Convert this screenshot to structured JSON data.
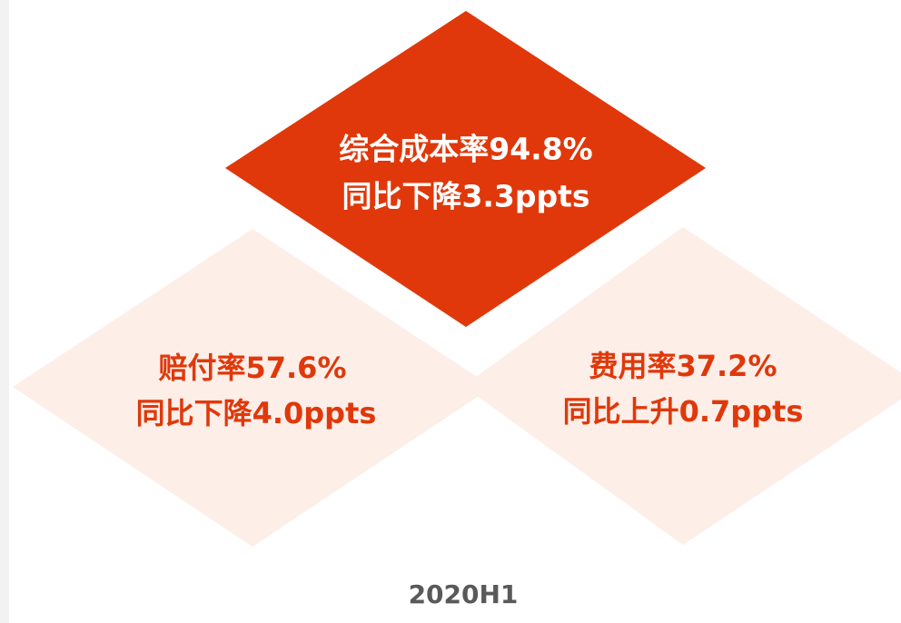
{
  "nodes": [
    {
      "lines": [
        "综合成本率94.8%",
        "同比下降3.3ppts"
      ]
    },
    {
      "lines": [
        "赔付率57.6%",
        "同比下降4.0ppts"
      ]
    },
    {
      "lines": [
        "费用率37.2%",
        "同比上升0.7ppts"
      ]
    }
  ],
  "footer": "2020H1"
}
